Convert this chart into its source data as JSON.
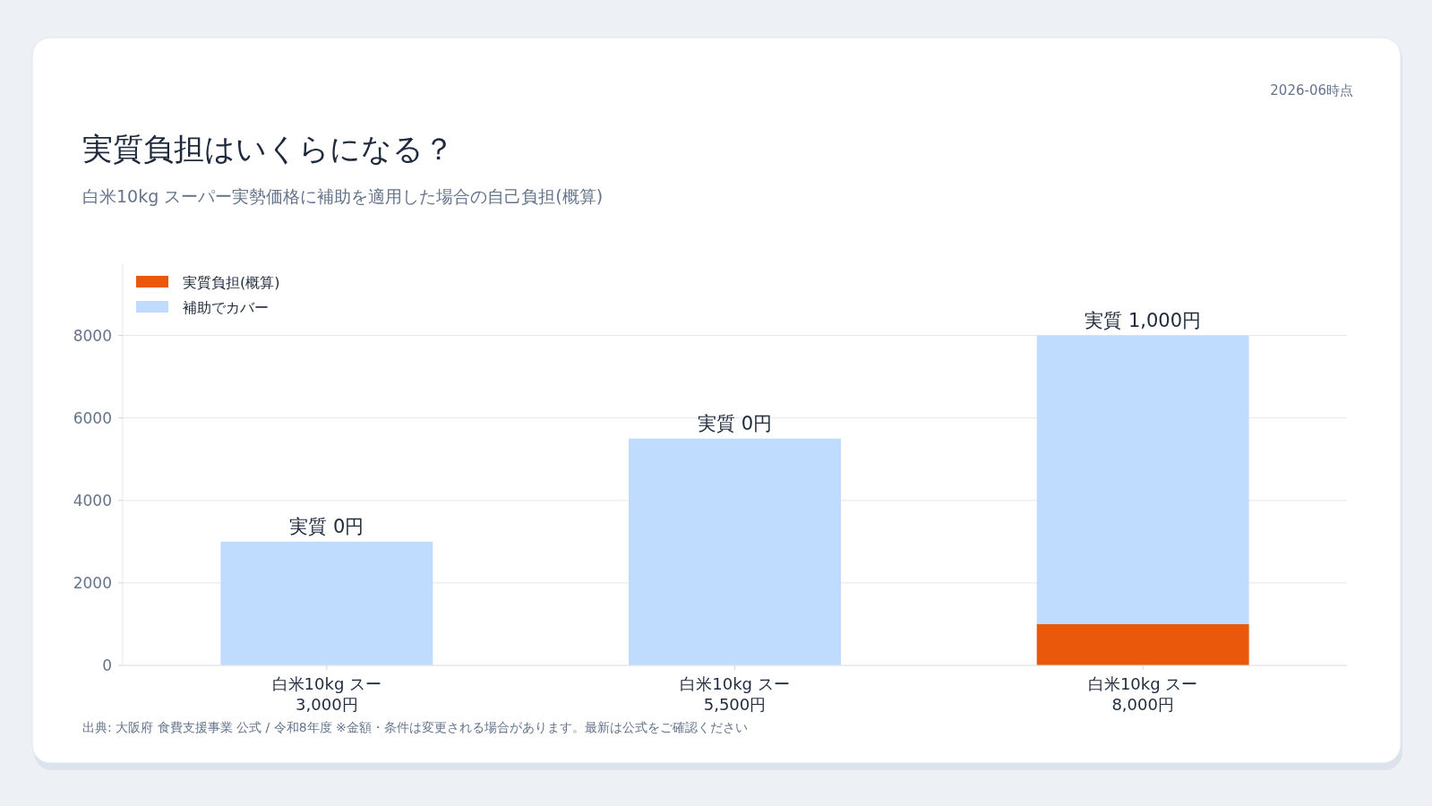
{
  "chart_data": {
    "type": "bar",
    "title": "実質負担はいくらになる？",
    "subtitle": "白米10kg スーパー実勢価格に補助を適用した場合の自己負担(概算)",
    "categories": [
      "白米10kg スー\n3,000円",
      "白米10kg スー\n5,500円",
      "白米10kg スー\n8,000円"
    ],
    "stacked": true,
    "series": [
      {
        "name": "実質負担(概算)",
        "color": "#ea580c",
        "values": [
          0,
          0,
          1000
        ]
      },
      {
        "name": "補助でカバー",
        "color": "#bfdbfe",
        "values": [
          3000,
          5500,
          7000
        ]
      }
    ],
    "totals": [
      "実質 0円",
      "実質 0円",
      "実質 1,000円"
    ],
    "ylim": [
      0,
      9750
    ],
    "yticks": [
      0,
      2000,
      4000,
      6000,
      8000
    ],
    "grid": "y",
    "legend": "top left",
    "annotations": [
      "2026-06時点",
      "出典: 大阪府 食費支援事業 公式 / 令和8年度 ※金額・条件は変更される場合があります。最新は公式をご確認ください"
    ]
  }
}
